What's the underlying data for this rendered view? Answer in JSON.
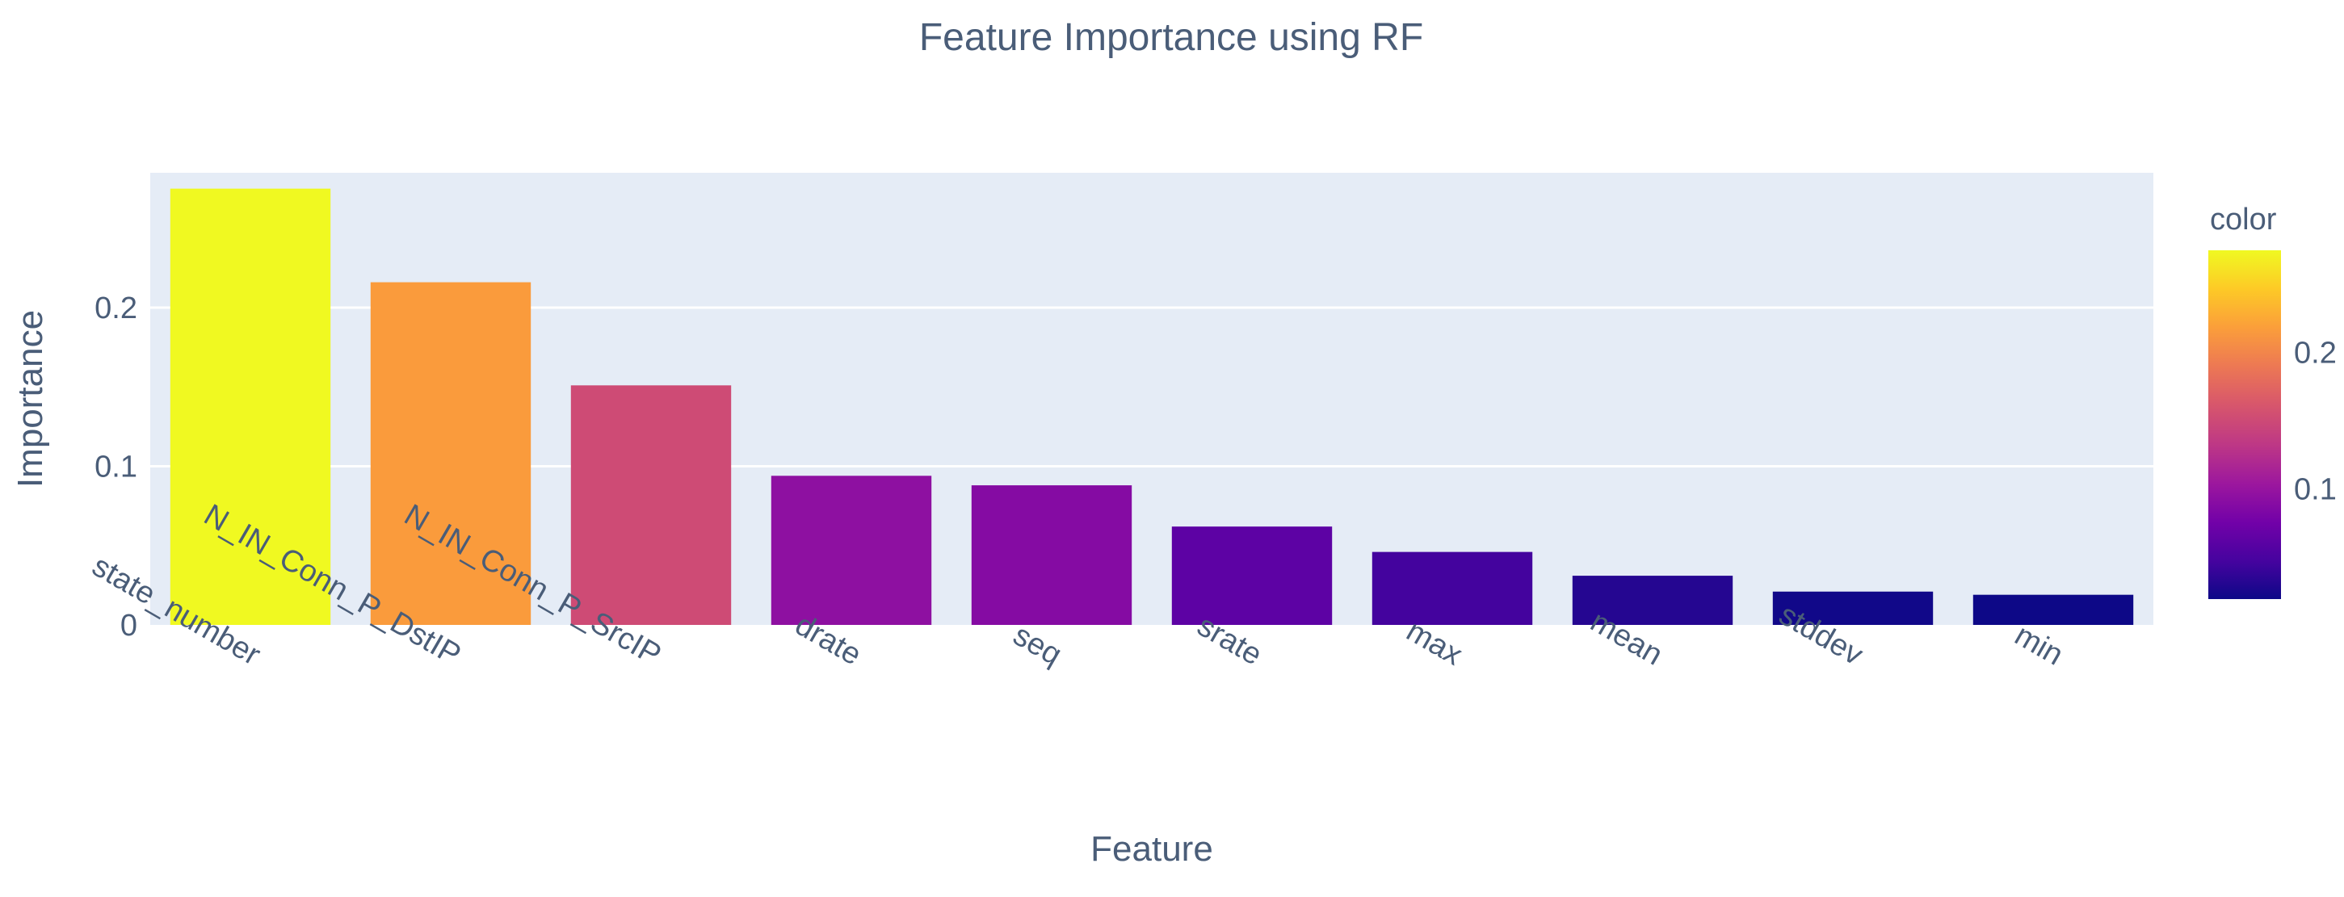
{
  "chart_data": {
    "type": "bar",
    "title": "Feature Importance using RF",
    "xlabel": "Feature",
    "ylabel": "Importance",
    "categories": [
      "state_number",
      "N_IN_Conn_P_DstIP",
      "N_IN_Conn_P_SrcIP",
      "drate",
      "seq",
      "srate",
      "max",
      "mean",
      "stddev",
      "min"
    ],
    "values": [
      0.275,
      0.216,
      0.151,
      0.094,
      0.088,
      0.062,
      0.046,
      0.031,
      0.021,
      0.019
    ],
    "ylim": [
      0,
      0.285
    ],
    "yticks": [
      {
        "value": 0,
        "label": "0"
      },
      {
        "value": 0.1,
        "label": "0.1"
      },
      {
        "value": 0.2,
        "label": "0.2"
      }
    ],
    "grid": true,
    "plot_background": "#e5ecf6",
    "colorscale": "plasma",
    "colorbar": {
      "title": "color",
      "range": [
        0.019,
        0.275
      ],
      "ticks": [
        {
          "value": 0.1,
          "label": "0.1"
        },
        {
          "value": 0.2,
          "label": "0.2"
        }
      ]
    }
  }
}
